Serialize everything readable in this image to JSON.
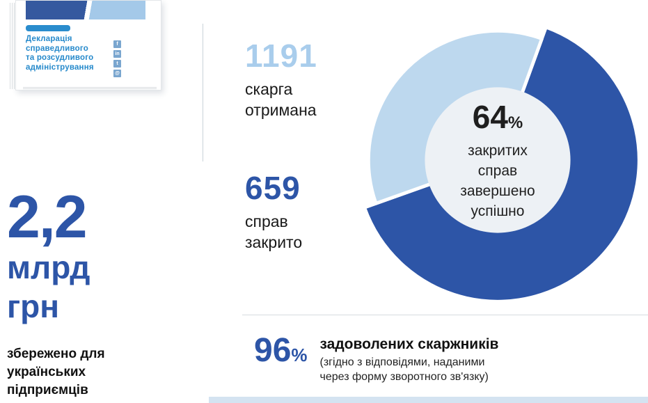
{
  "book": {
    "title_lines": [
      "Декларація",
      "справедливого",
      "та розсудливого",
      "адміністрування"
    ],
    "social": [
      {
        "name": "facebook",
        "glyph": "f"
      },
      {
        "name": "linkedin",
        "glyph": "in"
      },
      {
        "name": "twitter",
        "glyph": "t"
      },
      {
        "name": "email",
        "glyph": "@"
      }
    ]
  },
  "stats": {
    "received": {
      "value": "1191",
      "label_lines": [
        "скарга",
        "отримана"
      ]
    },
    "closed": {
      "value": "659",
      "label_lines": [
        "справ",
        "закрито"
      ]
    }
  },
  "chart_data": {
    "type": "pie",
    "subtype": "donut",
    "title": "",
    "segments": [
      {
        "name": "closed_successfully",
        "value": 64,
        "color": "#2d55a7",
        "outer_radius": 208
      },
      {
        "name": "remaining",
        "value": 36,
        "color": "#bdd8ee",
        "outer_radius": 190
      }
    ],
    "start_angle_deg": 20,
    "hole_radius": 107,
    "hole_color": "#edf1f5",
    "center_label": {
      "value": "64",
      "unit": "%",
      "lines": [
        "закритих",
        "справ",
        "завершено",
        "успішно"
      ]
    }
  },
  "savings": {
    "amount": "2,2",
    "unit_lines": [
      "млрд",
      "грн"
    ],
    "caption_lines": [
      "збережено для",
      "українських",
      "підприємців"
    ]
  },
  "satisfaction": {
    "value": "96",
    "unit": "%",
    "headline": "задоволених скаржників",
    "note_lines": [
      "(згідно з відповідями, наданими",
      "через форму зворотного зв'язку)"
    ]
  },
  "colors": {
    "primary_blue": "#2d55a7",
    "light_blue": "#bdd8ee",
    "pale_number_blue": "#a9cdec",
    "cover_accent_blue": "#2589cb",
    "text_dark": "#1c1c1c"
  }
}
